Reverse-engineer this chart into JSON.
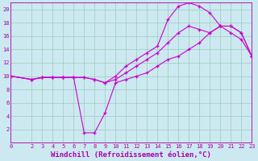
{
  "xlabel": "Windchill (Refroidissement éolien,°C)",
  "bg_color": "#cce8f0",
  "grid_color": "#99ccbb",
  "line_color": "#cc00cc",
  "xlim": [
    0,
    23
  ],
  "ylim": [
    0,
    21
  ],
  "xticks": [
    0,
    2,
    3,
    4,
    5,
    6,
    7,
    8,
    9,
    10,
    11,
    12,
    13,
    14,
    15,
    16,
    17,
    18,
    19,
    20,
    21,
    22,
    23
  ],
  "yticks": [
    2,
    4,
    6,
    8,
    10,
    12,
    14,
    16,
    18,
    20
  ],
  "line1_x": [
    0,
    2,
    3,
    4,
    5,
    6,
    7,
    8,
    9,
    10,
    11,
    12,
    13,
    14,
    15,
    16,
    17,
    18,
    19,
    20,
    21,
    22,
    23
  ],
  "line1_y": [
    10,
    9.5,
    9.8,
    9.8,
    9.8,
    9.8,
    9.8,
    9.5,
    9.0,
    10.0,
    11.5,
    12.5,
    13.5,
    14.5,
    18.5,
    20.5,
    21.0,
    20.5,
    19.5,
    17.5,
    16.5,
    15.5,
    13.0
  ],
  "line2_x": [
    0,
    2,
    3,
    4,
    5,
    6,
    7,
    8,
    9,
    10,
    11,
    12,
    13,
    14,
    15,
    16,
    17,
    18,
    19,
    20,
    21,
    22,
    23
  ],
  "line2_y": [
    10,
    9.5,
    9.8,
    9.8,
    9.8,
    9.8,
    9.8,
    9.5,
    9.0,
    9.5,
    10.5,
    11.5,
    12.5,
    13.5,
    15.0,
    16.5,
    17.5,
    17.0,
    16.5,
    17.5,
    17.5,
    16.5,
    13.0
  ],
  "line3_x": [
    0,
    2,
    3,
    4,
    5,
    6,
    7,
    8,
    9,
    10,
    11,
    12,
    13,
    14,
    15,
    16,
    17,
    18,
    19,
    20,
    21,
    22,
    23
  ],
  "line3_y": [
    10,
    9.5,
    9.8,
    9.8,
    9.8,
    9.8,
    1.5,
    1.5,
    4.5,
    9.0,
    9.5,
    10.0,
    10.5,
    11.5,
    12.5,
    13.0,
    14.0,
    15.0,
    16.5,
    17.5,
    17.5,
    16.5,
    13.0
  ],
  "tick_fontsize": 5.0,
  "xlabel_fontsize": 6.5,
  "tick_color": "#aa00aa",
  "label_color": "#aa00aa",
  "spine_color": "#aa00aa"
}
